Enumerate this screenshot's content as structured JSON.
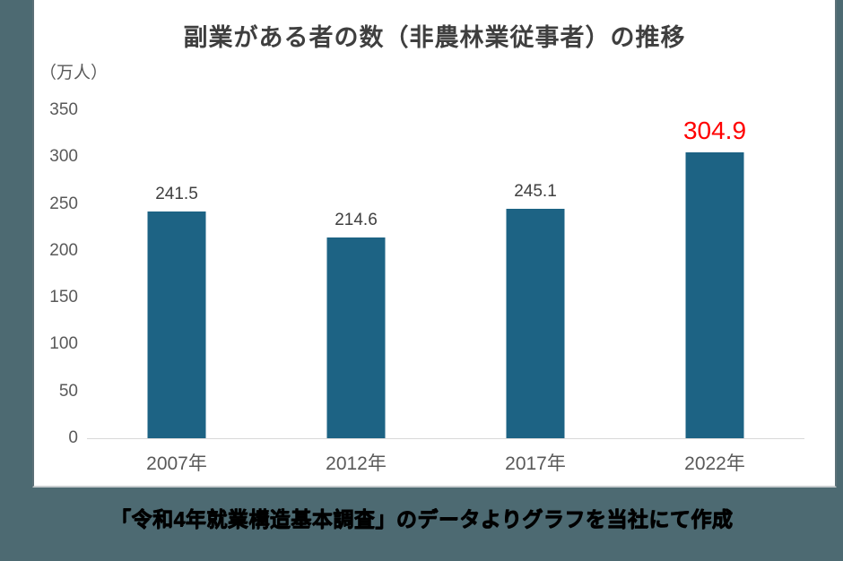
{
  "page": {
    "background_color": "#4d6a72"
  },
  "chart_data": {
    "type": "bar",
    "title": "副業がある者の数（非農林業従事者）の推移",
    "ylabel": "（万人）",
    "xlabel": "",
    "categories": [
      "2007年",
      "2012年",
      "2017年",
      "2022年"
    ],
    "values": [
      241.5,
      214.6,
      245.1,
      304.9
    ],
    "data_labels": [
      "241.5",
      "214.6",
      "245.1",
      "304.9"
    ],
    "highlight_index": 3,
    "ylim": [
      0,
      350
    ],
    "yticks": [
      0,
      50,
      100,
      150,
      200,
      250,
      300,
      350
    ],
    "grid": false,
    "legend": "none",
    "bar_color": "#1d6384",
    "label_color": "#404040",
    "highlight_label_color": "#ff0000",
    "axis_text_color": "#595959"
  },
  "caption": {
    "text": "「令和4年就業構造基本調査」のデータよりグラフを当社にて作成"
  }
}
